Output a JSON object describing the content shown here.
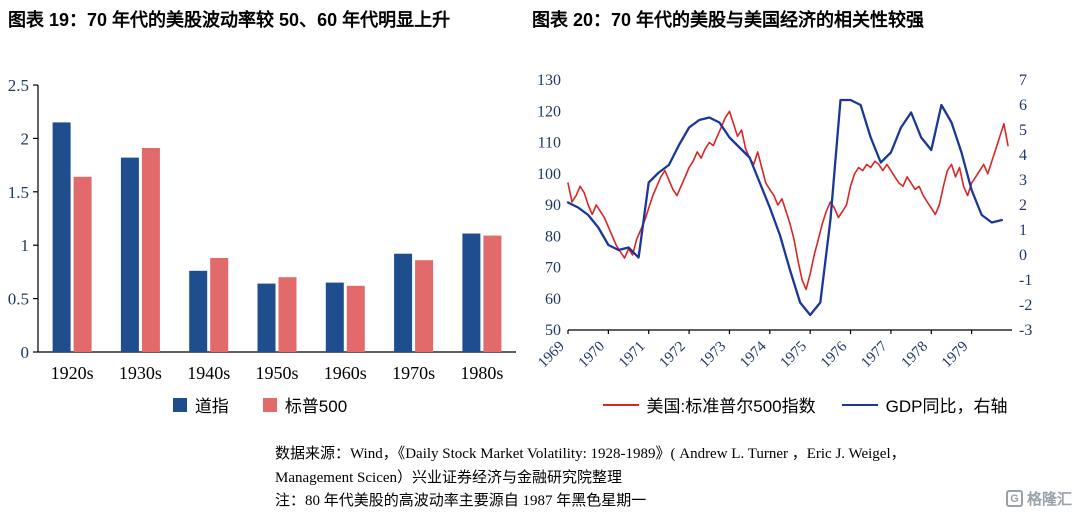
{
  "colors": {
    "axis_label": "#1F3864",
    "axis_line": "#000000",
    "dow_bar": "#1F4E8F",
    "sp_bar": "#E26A6A",
    "sp_line": "#D92626",
    "gdp_line": "#1A3799"
  },
  "chart_data": [
    {
      "type": "bar",
      "title": "图表 19：70 年代的美股波动率较 50、60 年代明显上升",
      "categories": [
        "1920s",
        "1930s",
        "1940s",
        "1950s",
        "1960s",
        "1970s",
        "1980s"
      ],
      "series": [
        {
          "name": "道指",
          "color": "#1F4E8F",
          "values": [
            2.15,
            1.82,
            0.76,
            0.64,
            0.65,
            0.92,
            1.11
          ]
        },
        {
          "name": "标普500",
          "color": "#E26A6A",
          "values": [
            1.64,
            1.91,
            0.88,
            0.7,
            0.62,
            0.86,
            1.09
          ]
        }
      ],
      "ylim": [
        0,
        2.5
      ],
      "yticks": [
        0,
        0.5,
        1,
        1.5,
        2,
        2.5
      ],
      "grid": false,
      "legend_position": "bottom"
    },
    {
      "type": "line",
      "title": "图表 20：70 年代的美股与美国经济的相关性较强",
      "x_min": 1969,
      "x_max": 1980,
      "x_ticks": [
        1969,
        1970,
        1971,
        1972,
        1973,
        1974,
        1975,
        1976,
        1977,
        1978,
        1979
      ],
      "left_axis": {
        "min": 50,
        "max": 130,
        "ticks": [
          130,
          120,
          110,
          100,
          90,
          80,
          70,
          60,
          50
        ]
      },
      "right_axis": {
        "min": -3,
        "max": 7,
        "ticks": [
          7,
          6,
          5,
          4,
          3,
          2,
          1,
          0,
          -1,
          -2,
          -3
        ]
      },
      "grid": false,
      "legend_position": "bottom",
      "series": [
        {
          "name": "美国:标准普尔500指数",
          "axis": "left",
          "color": "#D92626",
          "x_start": 1969,
          "x_step": 0.1,
          "values": [
            97,
            91,
            93,
            96,
            94,
            90,
            87,
            90,
            88,
            86,
            83,
            80,
            77,
            75,
            73,
            76,
            74,
            79,
            82,
            85,
            89,
            93,
            96,
            99,
            101,
            98,
            95,
            93,
            96,
            99,
            102,
            104,
            107,
            105,
            108,
            110,
            109,
            112,
            115,
            118,
            120,
            116,
            112,
            114,
            108,
            105,
            103,
            107,
            102,
            97,
            95,
            93,
            90,
            92,
            88,
            84,
            79,
            72,
            66,
            63,
            68,
            74,
            79,
            84,
            88,
            91,
            89,
            86,
            88,
            90,
            96,
            100,
            102,
            101,
            103,
            102,
            104,
            103,
            101,
            103,
            101,
            99,
            97,
            96,
            99,
            97,
            95,
            96,
            93,
            91,
            89,
            87,
            90,
            96,
            101,
            103,
            99,
            102,
            96,
            93,
            97,
            99,
            101,
            103,
            100,
            104,
            108,
            112,
            116,
            109
          ]
        },
        {
          "name": "GDP同比，右轴",
          "axis": "right",
          "color": "#1A3799",
          "x_start": 1969,
          "x_step": 0.25,
          "values": [
            2.1,
            1.9,
            1.6,
            1.1,
            0.4,
            0.2,
            0.3,
            -0.1,
            2.9,
            3.3,
            3.6,
            4.4,
            5.1,
            5.4,
            5.5,
            5.3,
            4.7,
            4.3,
            3.9,
            2.9,
            1.9,
            0.8,
            -0.6,
            -1.9,
            -2.4,
            -1.9,
            1.4,
            6.2,
            6.2,
            6.0,
            4.7,
            3.7,
            4.1,
            5.1,
            5.7,
            4.7,
            4.2,
            6.0,
            5.3,
            4.1,
            2.6,
            1.6,
            1.3,
            1.4
          ]
        }
      ]
    }
  ],
  "footer": {
    "lines": [
      "数据来源：Wind，《Daily Stock Market Volatility: 1928-1989》( Andrew L. Turner ，Eric J. Weigel，",
      "Management Scicen）兴业证券经济与金融研究院整理",
      "注：80 年代美股的高波动率主要源自 1987 年黑色星期一"
    ]
  },
  "logo": {
    "mark": "G",
    "text": "格隆汇"
  }
}
